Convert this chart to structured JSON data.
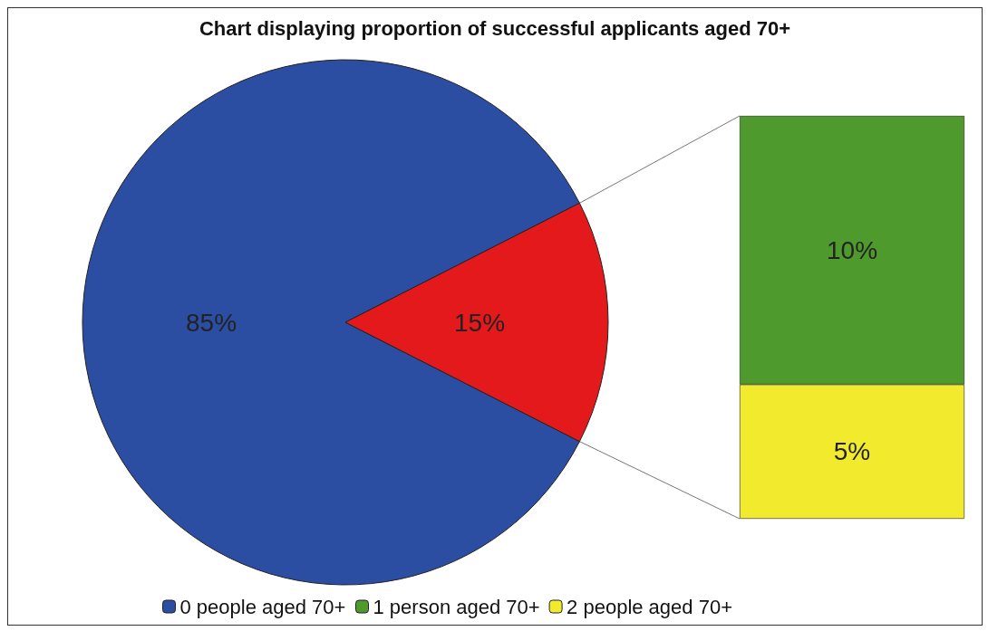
{
  "chart_data": [
    {
      "type": "pie",
      "title": "Chart displaying proportion of successful applicants aged 70+",
      "categories": [
        "0 people aged 70+",
        null
      ],
      "values": [
        85,
        15
      ],
      "colors": [
        "#2b4ea2",
        "#e3191b"
      ],
      "value_labels": [
        "85%",
        "15%"
      ],
      "legend": "bottom"
    },
    {
      "type": "bar",
      "stacked": true,
      "categories": [
        null
      ],
      "legend": "bottom",
      "series": [
        {
          "name": "2 people aged 70+",
          "color": "#f2ea2c",
          "values": [
            5
          ],
          "value_labels": [
            "5%"
          ]
        },
        {
          "name": "1 person aged 70+",
          "color": "#4f9a2c",
          "values": [
            10
          ],
          "value_labels": [
            "10%"
          ]
        }
      ]
    }
  ]
}
